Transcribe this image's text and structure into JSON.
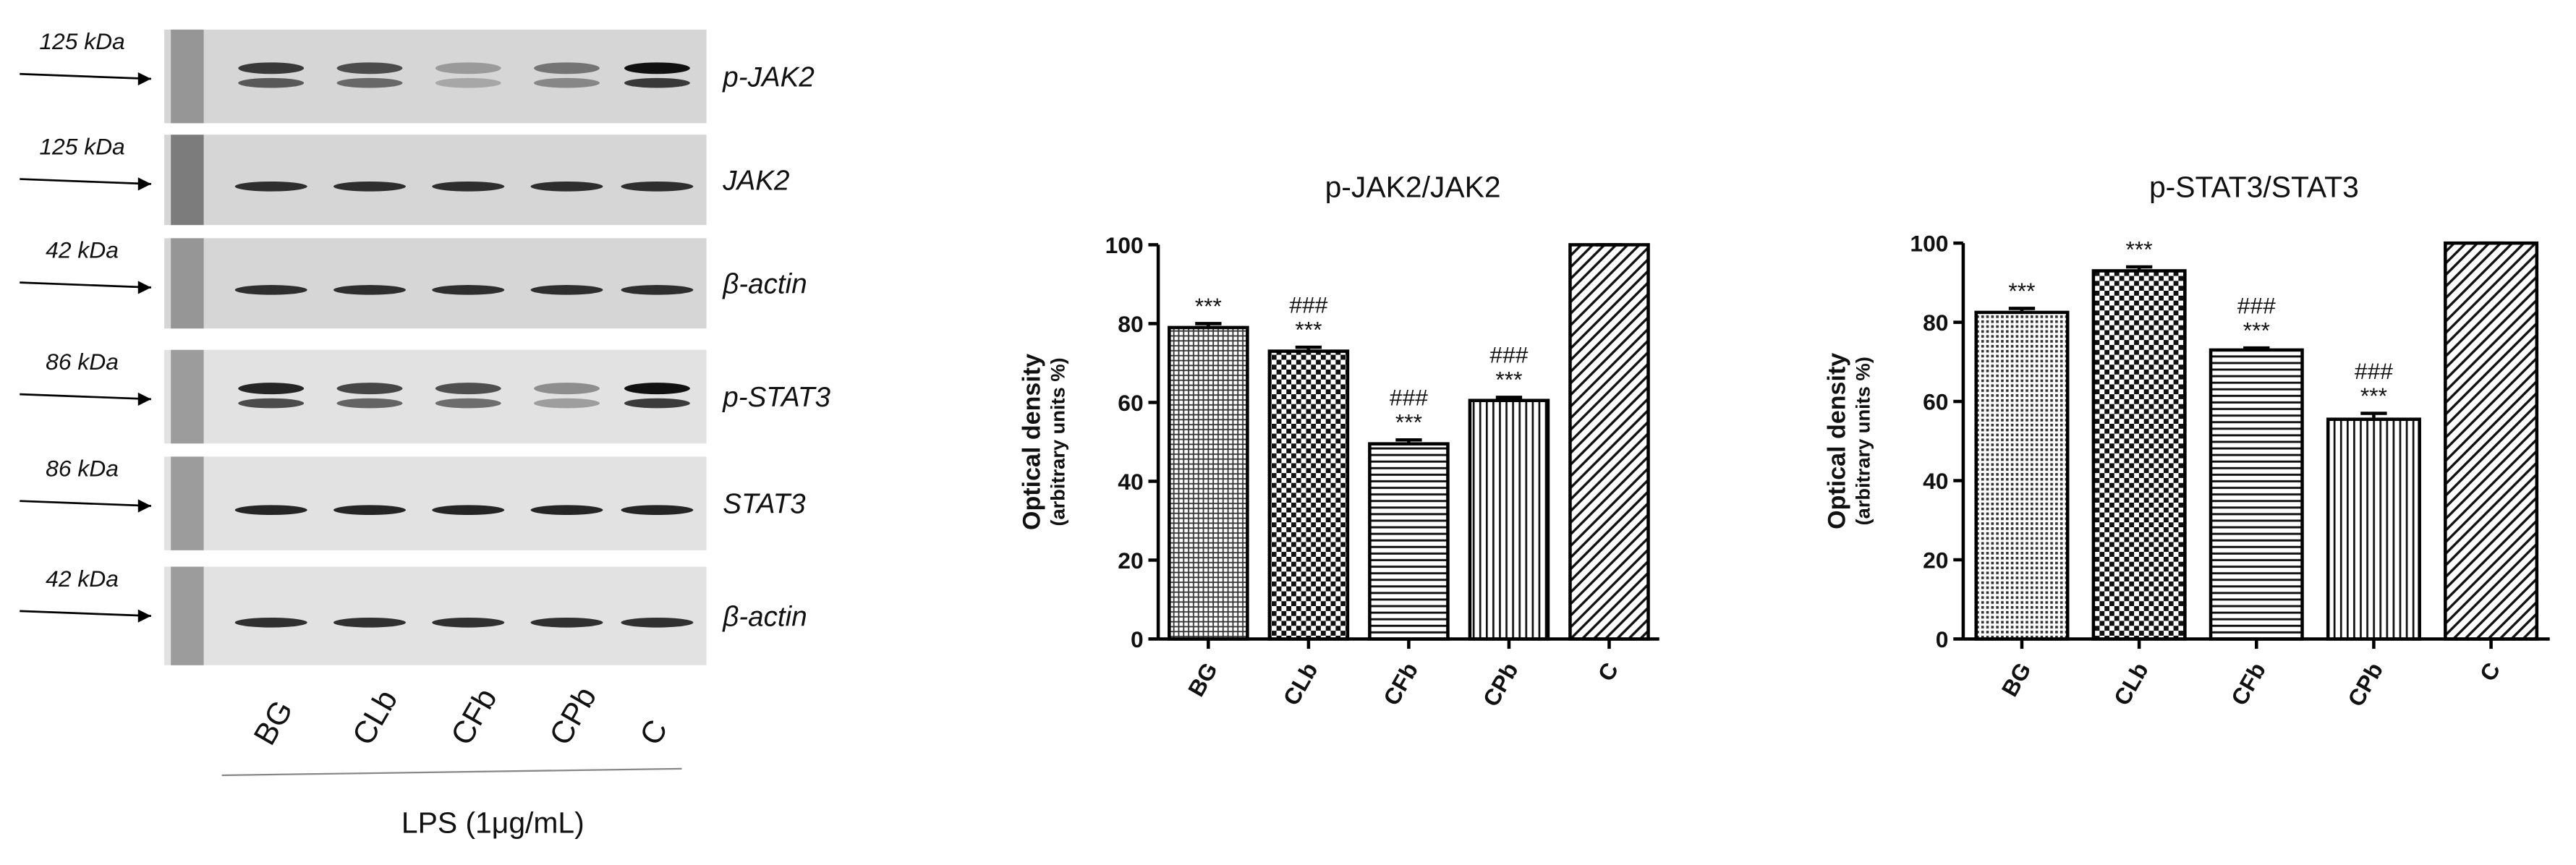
{
  "blot": {
    "markers": [
      "125 kDa",
      "125 kDa",
      "42 kDa",
      "86 kDa",
      "86 kDa",
      "42 kDa"
    ],
    "proteins": [
      "p-JAK2",
      "JAK2",
      "β-actin",
      "p-STAT3",
      "STAT3",
      "β-actin"
    ],
    "lanes": [
      "BG",
      "CLb",
      "CFb",
      "CPb",
      "C"
    ],
    "treatment": "LPS (1μg/mL)"
  },
  "chart_data": [
    {
      "type": "bar",
      "title": "p-JAK2/JAK2",
      "ylabel": "Optical density",
      "ylabel_sub": "(arbitrary units %)",
      "categories": [
        "BG",
        "CLb",
        "CFb",
        "CPb",
        "C"
      ],
      "values": [
        79,
        73,
        49.5,
        60.5,
        100
      ],
      "errors": [
        1,
        1,
        1,
        0.8,
        0
      ],
      "annotations": [
        [
          "***"
        ],
        [
          "###",
          "***"
        ],
        [
          "###",
          "***"
        ],
        [
          "###",
          "***"
        ],
        []
      ],
      "patterns": [
        "grid-fine",
        "checker",
        "hlines",
        "vlines",
        "diagonal"
      ],
      "color": "#000000",
      "ylim": [
        0,
        100
      ],
      "yticks": [
        0,
        20,
        40,
        60,
        80,
        100
      ]
    },
    {
      "type": "bar",
      "title": "p-STAT3/STAT3",
      "ylabel": "Optical density",
      "ylabel_sub": "(arbitrary units %)",
      "categories": [
        "BG",
        "CLb",
        "CFb",
        "CPb",
        "C"
      ],
      "values": [
        82.5,
        93,
        73,
        55.5,
        100
      ],
      "errors": [
        1,
        1,
        0.5,
        1.5,
        0
      ],
      "annotations": [
        [
          "***"
        ],
        [
          "***"
        ],
        [
          "###",
          "***"
        ],
        [
          "###",
          "***"
        ],
        []
      ],
      "patterns": [
        "dots",
        "checker",
        "hlines",
        "vlines",
        "diagonal"
      ],
      "color": "#000000",
      "ylim": [
        0,
        100
      ],
      "yticks": [
        0,
        20,
        40,
        60,
        80,
        100
      ]
    }
  ]
}
